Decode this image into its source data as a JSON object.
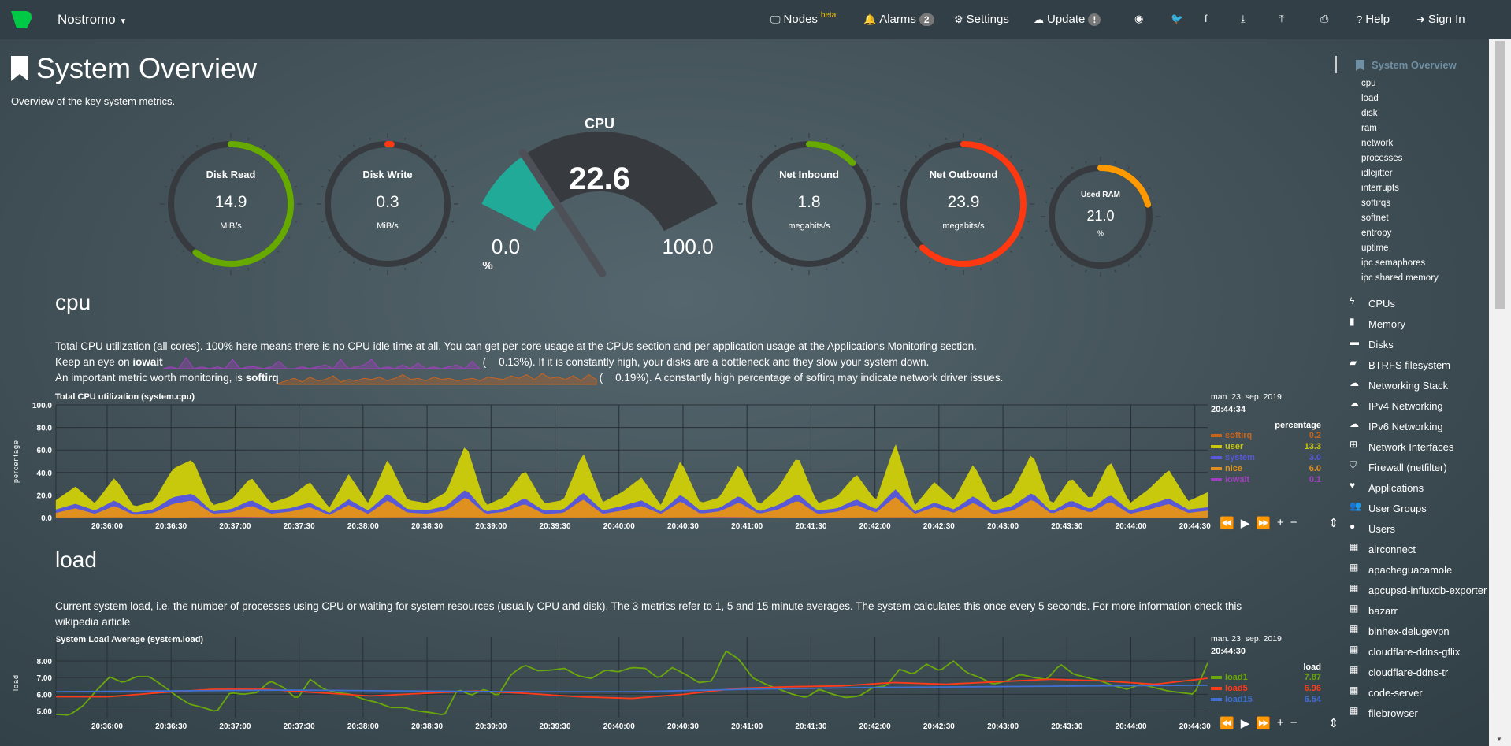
{
  "nav": {
    "brand": "Nostromo",
    "items": [
      {
        "label": "Nodes",
        "sup": "beta",
        "icon": "monitor-icon"
      },
      {
        "label": "Alarms",
        "badge": "2",
        "icon": "bell-icon"
      },
      {
        "label": "Settings",
        "icon": "gear-icon"
      },
      {
        "label": "Update",
        "badge": "!",
        "icon": "cloud-download-icon"
      },
      {
        "label": "",
        "icon": "github-icon"
      },
      {
        "label": "",
        "icon": "twitter-icon"
      },
      {
        "label": "",
        "icon": "facebook-icon"
      },
      {
        "label": "",
        "icon": "download-icon"
      },
      {
        "label": "",
        "icon": "upload-icon"
      },
      {
        "label": "",
        "icon": "print-icon"
      },
      {
        "label": "Help",
        "icon": "question-icon"
      },
      {
        "label": "Sign In",
        "icon": "sign-in-icon"
      }
    ]
  },
  "page": {
    "title": "System Overview",
    "subtitle": "Overview of the key system metrics."
  },
  "gauges": [
    {
      "title": "Disk Read",
      "value": "14.9",
      "unit": "MiB/s",
      "fill": 0.6,
      "color": "#66aa00"
    },
    {
      "title": "Disk Write",
      "value": "0.3",
      "unit": "MiB/s",
      "fill": 0.01,
      "color": "#fe3912"
    },
    {
      "title": "Net Inbound",
      "value": "1.8",
      "unit": "megabits/s",
      "fill": 0.13,
      "color": "#66aa00"
    },
    {
      "title": "Net Outbound",
      "value": "23.9",
      "unit": "megabits/s",
      "fill": 0.62,
      "color": "#fe3912"
    },
    {
      "title": "Used RAM",
      "value": "21.0",
      "unit": "%",
      "fill": 0.21,
      "color": "#ff9900"
    }
  ],
  "cpu_gauge": {
    "title": "CPU",
    "value": "22.6",
    "min": "0.0",
    "max": "100.0",
    "unit": "%",
    "fraction": 0.226,
    "color": "#22aa99"
  },
  "cpu": {
    "heading": "cpu",
    "line1": "Total CPU utilization (all cores). 100% here means there is no CPU idle time at all. You can get per core usage at the CPUs section and per application usage at the Applications Monitoring section.",
    "line2a": "Keep an eye on ",
    "line2b": "iowait",
    "line2c": "0.13%). If it is constantly high, your disks are a bottleneck and they slow your system down.",
    "paren": "(",
    "line3a": "An important metric worth monitoring, is ",
    "line3b": "softirq",
    "line3c": "0.19%). A constantly high percentage of softirq may indicate network driver issues.",
    "spark_iowait": [
      0,
      0.1,
      0,
      0.6,
      0,
      0.1,
      0,
      0.1,
      0,
      0.5,
      0,
      0.1,
      0.1,
      0,
      0.1,
      0.4,
      0,
      0,
      0.1,
      0,
      0.1,
      0.2,
      0,
      0.5,
      0,
      0.1,
      0.2,
      0.5,
      0,
      0.1,
      0,
      0.2,
      0,
      0.3,
      0,
      0.1,
      0,
      0.1,
      0.2,
      0,
      0.4,
      0
    ],
    "spark_softirq": [
      0.1,
      0.3,
      0.5,
      0.2,
      0.6,
      0.3,
      0.4,
      0.7,
      0.2,
      0.4,
      0.3,
      0.5,
      0.4,
      0.6,
      0.3,
      0.5,
      0.8,
      0.4,
      0.5,
      0.3,
      0.6,
      0.4,
      0.5,
      0.3,
      0.4,
      0.5,
      0.3,
      0.6,
      0.5,
      0.4,
      0.7,
      0.5,
      0.8,
      0.4,
      0.9,
      0.5,
      0.6,
      0.4,
      0.7,
      0.3,
      0.8,
      0.4
    ]
  },
  "load": {
    "heading": "load",
    "line1": "Current system load, i.e. the number of processes using CPU or waiting for system resources (usually CPU and disk). The 3 metrics refer to 1, 5 and 15 minute averages. The system calculates this once every 5 seconds. For more information check this",
    "line2": "wikipedia article"
  },
  "chart_data": [
    {
      "type": "area",
      "title": "Total CPU utilization (system.cpu)",
      "ylabel": "percentage",
      "ylim": [
        0,
        100
      ],
      "yticks": [
        "0.0",
        "20.0",
        "40.0",
        "60.0",
        "80.0",
        "100.0"
      ],
      "grid": true,
      "xlim": [
        "20:35:36",
        "20:44:36"
      ],
      "xticks": [
        "20:36:00",
        "20:36:30",
        "20:37:00",
        "20:37:30",
        "20:38:00",
        "20:38:30",
        "20:39:00",
        "20:39:30",
        "20:40:00",
        "20:40:30",
        "20:41:00",
        "20:41:30",
        "20:42:00",
        "20:42:30",
        "20:43:00",
        "20:43:30",
        "20:44:00",
        "20:44:30"
      ],
      "legend": {
        "date": "man. 23. sep. 2019",
        "time": "20:44:34",
        "unit": "percentage",
        "position": "right"
      },
      "stacked": true,
      "series": [
        {
          "name": "softirq",
          "color": "#c8641e",
          "last": "0.2",
          "values": [
            0.2,
            0.3,
            0.2,
            0.2,
            0.3,
            0.2,
            0.2,
            0.3,
            0.2,
            0.2,
            0.3,
            0.2,
            0.2,
            0.2,
            0.3,
            0.2,
            0.2,
            0.3,
            0.2,
            0.2
          ]
        },
        {
          "name": "user",
          "color": "#c8c80c",
          "last": "13.3",
          "values": [
            8,
            15,
            6,
            20,
            5,
            7,
            25,
            30,
            5,
            8,
            20,
            6,
            10,
            18,
            4,
            22,
            6,
            30,
            8,
            6,
            12,
            40,
            5,
            10,
            25,
            6,
            8,
            35,
            7,
            12,
            20,
            5,
            30,
            6,
            9,
            28,
            5,
            15,
            33,
            6,
            10,
            22,
            7,
            40,
            5,
            18,
            8,
            28,
            6,
            12,
            35,
            5,
            20,
            8,
            30,
            6,
            14,
            25,
            7,
            13
          ]
        },
        {
          "name": "system",
          "color": "#5858d8",
          "last": "3.0",
          "values": [
            3,
            4,
            3,
            5,
            2,
            3,
            6,
            6,
            2,
            3,
            5,
            3,
            3,
            4,
            2,
            5,
            3,
            6,
            3,
            3,
            4,
            7,
            2,
            3,
            5,
            3,
            3,
            6,
            3,
            4,
            5,
            2,
            6,
            3,
            3,
            6,
            2,
            4,
            6,
            3,
            3,
            5,
            3,
            7,
            2,
            4,
            3,
            6,
            3,
            4,
            6,
            2,
            5,
            3,
            6,
            3,
            4,
            5,
            3,
            3
          ]
        },
        {
          "name": "nice",
          "color": "#e0901e",
          "last": "6.0",
          "values": [
            4,
            8,
            3,
            10,
            2,
            4,
            12,
            15,
            3,
            4,
            10,
            3,
            5,
            9,
            2,
            11,
            3,
            15,
            4,
            3,
            6,
            18,
            3,
            5,
            12,
            3,
            4,
            16,
            3,
            6,
            10,
            3,
            14,
            3,
            5,
            13,
            3,
            7,
            15,
            3,
            5,
            11,
            4,
            18,
            3,
            9,
            4,
            13,
            3,
            6,
            16,
            3,
            10,
            4,
            14,
            3,
            7,
            12,
            4,
            6
          ]
        },
        {
          "name": "iowait",
          "color": "#a040c0",
          "last": "0.1",
          "values": [
            0.1,
            0.2,
            0.1,
            0.6,
            0.1,
            0.1,
            0.4,
            0.1,
            0.1,
            0.2,
            0.1,
            0.5,
            0.1,
            0.1,
            0.3,
            0.1,
            0.1,
            0.2,
            0.1,
            0.1
          ]
        }
      ]
    },
    {
      "type": "line",
      "title": "System Load Average (system.load)",
      "ylabel": "load",
      "ylim": [
        4.6,
        8.8
      ],
      "yticks": [
        "5.00",
        "6.00",
        "7.00",
        "8.00"
      ],
      "grid": true,
      "xlim": [
        "20:35:36",
        "20:44:36"
      ],
      "xticks": [
        "20:36:00",
        "20:36:30",
        "20:37:00",
        "20:37:30",
        "20:38:00",
        "20:38:30",
        "20:39:00",
        "20:39:30",
        "20:40:00",
        "20:40:30",
        "20:41:00",
        "20:41:30",
        "20:42:00",
        "20:42:30",
        "20:43:00",
        "20:43:30",
        "20:44:00",
        "20:44:30"
      ],
      "legend": {
        "date": "man. 23. sep. 2019",
        "time": "20:44:30",
        "unit": "load",
        "position": "right"
      },
      "series": [
        {
          "name": "load1",
          "color": "#6aa80a",
          "last": "7.87",
          "values": [
            4.8,
            4.75,
            5.3,
            6.2,
            7.05,
            6.7,
            7.05,
            7.05,
            6.5,
            5.9,
            5.4,
            5.2,
            4.95,
            6.1,
            6.0,
            6.1,
            6.8,
            6.4,
            5.7,
            6.9,
            6.3,
            6.1,
            6.0,
            5.7,
            5.5,
            5.2,
            5.2,
            5.0,
            4.9,
            4.75,
            6.3,
            5.95,
            6.3,
            5.9,
            7.2,
            7.75,
            7.4,
            7.45,
            7.55,
            7.1,
            6.95,
            7.45,
            7.35,
            7.6,
            7.55,
            6.95,
            7.6,
            7.2,
            6.7,
            6.8,
            8.6,
            8.1,
            7.0,
            6.6,
            6.3,
            6.0,
            5.8,
            6.3,
            6.0,
            5.8,
            5.9,
            6.4,
            6.5,
            7.5,
            7.2,
            7.8,
            7.4,
            8.0,
            7.3,
            7.0,
            6.6,
            6.8,
            7.2,
            7.0,
            6.9,
            7.8,
            7.2,
            7.0,
            6.8,
            6.5,
            6.3,
            6.6,
            6.4,
            6.2,
            6.1,
            6.0,
            7.87
          ]
        },
        {
          "name": "load5",
          "color": "#ff3b1a",
          "last": "6.96",
          "values": [
            5.85,
            5.85,
            6.1,
            6.3,
            6.3,
            6.1,
            5.9,
            6.05,
            6.2,
            6.05,
            5.85,
            5.75,
            6.0,
            6.35,
            6.45,
            6.5,
            6.7,
            6.6,
            6.75,
            6.9,
            6.8,
            6.6,
            6.96
          ]
        },
        {
          "name": "load15",
          "color": "#3f6fd0",
          "last": "6.54",
          "values": [
            6.15,
            6.2,
            6.25,
            6.2,
            6.15,
            6.15,
            6.3,
            6.4,
            6.45,
            6.5,
            6.54
          ]
        }
      ]
    }
  ],
  "controls": {
    "rewind": "⏪",
    "play": "▶",
    "forward": "⏩",
    "zoom_in": "+",
    "zoom_out": "−",
    "resize": "⇕"
  },
  "sidebar": {
    "active": "System Overview",
    "sub": [
      "cpu",
      "load",
      "disk",
      "ram",
      "network",
      "processes",
      "idlejitter",
      "interrupts",
      "softirqs",
      "softnet",
      "entropy",
      "uptime",
      "ipc semaphores",
      "ipc shared memory"
    ],
    "main": [
      {
        "label": "CPUs",
        "icon": "bolt-icon",
        "glyph": "ϟ"
      },
      {
        "label": "Memory",
        "icon": "memory-icon",
        "glyph": "▮"
      },
      {
        "label": "Disks",
        "icon": "hdd-icon",
        "glyph": "▬"
      },
      {
        "label": "BTRFS filesystem",
        "icon": "folder-icon",
        "glyph": "▰"
      },
      {
        "label": "Networking Stack",
        "icon": "cloud-icon",
        "glyph": "☁"
      },
      {
        "label": "IPv4 Networking",
        "icon": "cloud-icon",
        "glyph": "☁"
      },
      {
        "label": "IPv6 Networking",
        "icon": "cloud-icon",
        "glyph": "☁"
      },
      {
        "label": "Network Interfaces",
        "icon": "sitemap-icon",
        "glyph": "⊞"
      },
      {
        "label": "Firewall (netfilter)",
        "icon": "shield-icon",
        "glyph": "⛉"
      },
      {
        "label": "Applications",
        "icon": "heartbeat-icon",
        "glyph": "♥"
      },
      {
        "label": "User Groups",
        "icon": "users-icon",
        "glyph": "👥"
      },
      {
        "label": "Users",
        "icon": "user-icon",
        "glyph": "●"
      },
      {
        "label": "airconnect",
        "icon": "grid-icon",
        "glyph": "▦"
      },
      {
        "label": "apacheguacamole",
        "icon": "grid-icon",
        "glyph": "▦"
      },
      {
        "label": "apcupsd-influxdb-exporter",
        "icon": "grid-icon",
        "glyph": "▦"
      },
      {
        "label": "bazarr",
        "icon": "grid-icon",
        "glyph": "▦"
      },
      {
        "label": "binhex-delugevpn",
        "icon": "grid-icon",
        "glyph": "▦"
      },
      {
        "label": "cloudflare-ddns-gflix",
        "icon": "grid-icon",
        "glyph": "▦"
      },
      {
        "label": "cloudflare-ddns-tr",
        "icon": "grid-icon",
        "glyph": "▦"
      },
      {
        "label": "code-server",
        "icon": "grid-icon",
        "glyph": "▦"
      },
      {
        "label": "filebrowser",
        "icon": "grid-icon",
        "glyph": "▦"
      }
    ]
  }
}
